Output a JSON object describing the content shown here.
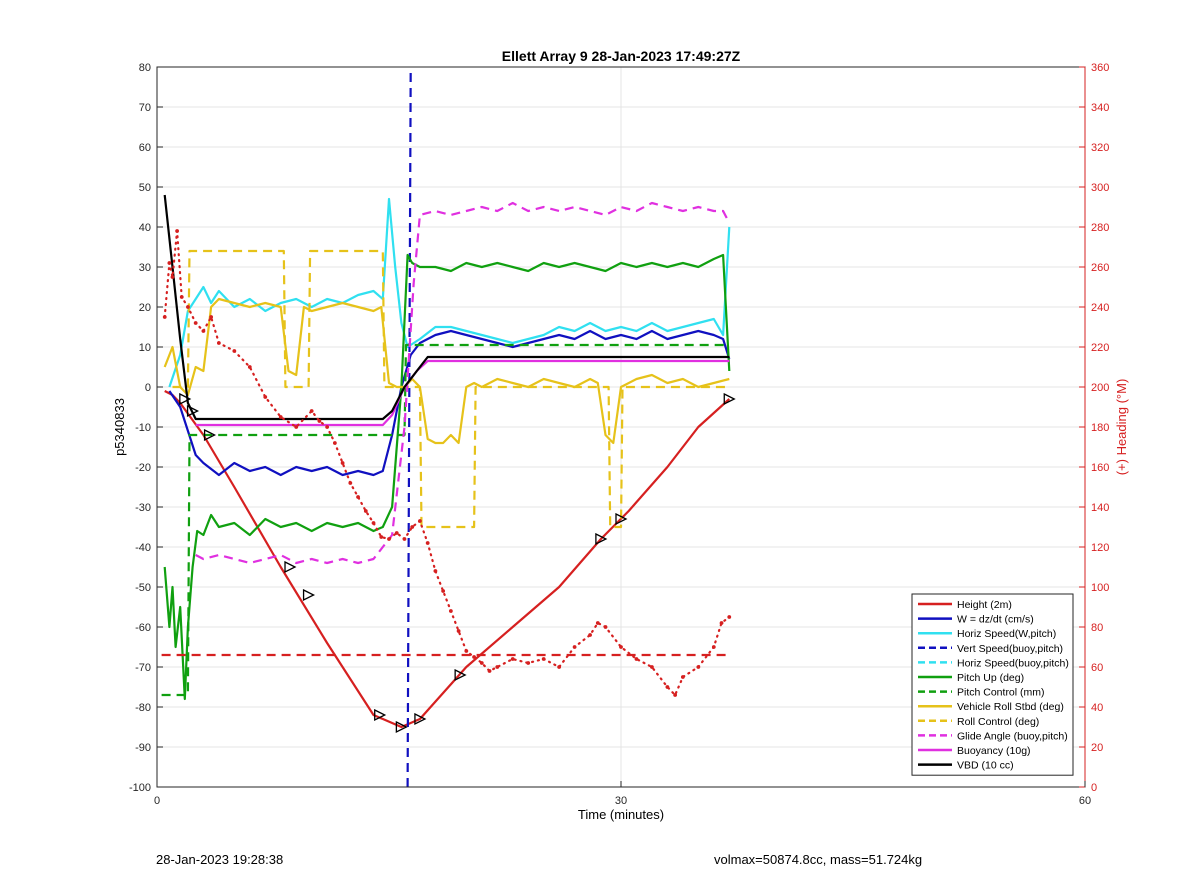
{
  "footer": {
    "timestamp": "28-Jan-2023 19:28:38",
    "summary": "volmax=50874.8cc, mass=51.724kg"
  },
  "chart_data": {
    "type": "line",
    "title": "Ellett Array 9 28-Jan-2023 17:49:27Z",
    "xlabel": "Time (minutes)",
    "ylabel": "p5340833",
    "y2label": "(+) Heading (°M)",
    "xlim": [
      0,
      60
    ],
    "ylim": [
      -100,
      80
    ],
    "y2lim": [
      0,
      360
    ],
    "xticks": [
      0,
      30,
      60
    ],
    "yticks": [
      -100,
      -90,
      -80,
      -70,
      -60,
      -50,
      -40,
      -30,
      -20,
      -10,
      0,
      10,
      20,
      30,
      40,
      50,
      60,
      70,
      80
    ],
    "y2ticks": [
      0,
      20,
      40,
      60,
      80,
      100,
      120,
      140,
      160,
      180,
      200,
      220,
      240,
      260,
      280,
      300,
      320,
      340,
      360
    ],
    "grid": true,
    "legend_position": "bottom-right",
    "colors": {
      "red": "#d62020",
      "blue": "#1010c0",
      "cyan": "#30e0f0",
      "green": "#10a010",
      "yellow": "#e6c21a",
      "magenta": "#e030e0",
      "black": "#000000",
      "right_axis": "#d62020"
    },
    "legend": [
      {
        "label": "Height (2m)",
        "color": "red",
        "style": "solid"
      },
      {
        "label": "W = dz/dt (cm/s)",
        "color": "blue",
        "style": "solid"
      },
      {
        "label": "Horiz Speed(W,pitch)",
        "color": "cyan",
        "style": "solid"
      },
      {
        "label": "Vert Speed(buoy,pitch)",
        "color": "blue",
        "style": "dashed"
      },
      {
        "label": "Horiz Speed(buoy,pitch)",
        "color": "cyan",
        "style": "dashed"
      },
      {
        "label": "Pitch Up (deg)",
        "color": "green",
        "style": "solid"
      },
      {
        "label": "Pitch Control (mm)",
        "color": "green",
        "style": "dashed"
      },
      {
        "label": "Vehicle Roll Stbd (deg)",
        "color": "yellow",
        "style": "solid"
      },
      {
        "label": "Roll Control (deg)",
        "color": "yellow",
        "style": "dashed"
      },
      {
        "label": "Glide Angle (buoy,pitch)",
        "color": "magenta",
        "style": "dashed"
      },
      {
        "label": "Buoyancy (10g)",
        "color": "magenta",
        "style": "solid"
      },
      {
        "label": "VBD (10 cc)",
        "color": "black",
        "style": "solid"
      }
    ],
    "series": [
      {
        "name": "Height (2m)",
        "color": "red",
        "style": "solid",
        "x": [
          0.5,
          1.0,
          1.5,
          3.0,
          5.0,
          8.0,
          11.0,
          14.0,
          15.8,
          17.0,
          20.0,
          23.0,
          26.0,
          28.7,
          30.5,
          33.0,
          35.0,
          37.0
        ],
        "y": [
          -1,
          -2,
          -4,
          -12,
          -25,
          -45,
          -64,
          -82,
          -85,
          -83,
          -70,
          -60,
          -50,
          -38,
          -31,
          -20,
          -10,
          -3
        ]
      },
      {
        "name": "W = dz/dt (cm/s)",
        "color": "blue",
        "style": "solid",
        "x": [
          0.8,
          1.5,
          2.5,
          3.0,
          4.0,
          5.0,
          6.0,
          7.0,
          8.0,
          9.0,
          10.0,
          11.0,
          12.0,
          13.0,
          14.0,
          14.6,
          15.2,
          15.8,
          16.4,
          17.0,
          18.0,
          19.0,
          20.0,
          21.0,
          22.0,
          23.0,
          24.0,
          25.0,
          26.0,
          27.0,
          28.0,
          29.0,
          30.0,
          31.0,
          32.0,
          33.0,
          34.0,
          35.0,
          36.0,
          36.6,
          37.0
        ],
        "y": [
          -1,
          -5,
          -17,
          -19,
          -22,
          -19,
          -21,
          -20,
          -22,
          -20,
          -21,
          -20,
          -22,
          -21,
          -22,
          -21,
          -12,
          0,
          8,
          11,
          13,
          14,
          13,
          12,
          11,
          10,
          11,
          12,
          13,
          12,
          14,
          12,
          13,
          12,
          14,
          12,
          13,
          14,
          13,
          12,
          7
        ]
      },
      {
        "name": "Horiz Speed(W,pitch)",
        "color": "cyan",
        "style": "solid",
        "x": [
          0.8,
          1.5,
          2.0,
          2.5,
          3.0,
          3.5,
          4.0,
          5.0,
          6.0,
          7.0,
          8.0,
          9.0,
          10.0,
          11.0,
          12.0,
          13.0,
          14.0,
          14.6,
          15.0,
          15.4,
          15.8,
          16.2,
          17.0,
          18.0,
          19.0,
          20.0,
          21.0,
          22.0,
          23.0,
          24.0,
          25.0,
          26.0,
          27.0,
          28.0,
          29.0,
          30.0,
          31.0,
          32.0,
          33.0,
          34.0,
          35.0,
          36.0,
          36.6,
          37.0
        ],
        "y": [
          0,
          8,
          19,
          22,
          25,
          21,
          24,
          20,
          22,
          19,
          21,
          22,
          20,
          22,
          21,
          23,
          24,
          22,
          47,
          30,
          16,
          10,
          12,
          15,
          15,
          14,
          13,
          12,
          11,
          12,
          13,
          15,
          14,
          16,
          14,
          15,
          14,
          16,
          14,
          15,
          16,
          17,
          13,
          40
        ]
      },
      {
        "name": "Vert Speed(buoy,pitch)",
        "color": "blue",
        "style": "dashed",
        "x": [
          16.2,
          16.4
        ],
        "y": [
          -100,
          80
        ]
      },
      {
        "name": "Pitch Up (deg)",
        "color": "green",
        "style": "solid",
        "x": [
          0.5,
          0.8,
          1.0,
          1.2,
          1.5,
          1.8,
          2.0,
          2.3,
          2.6,
          3.0,
          3.5,
          4.0,
          5.0,
          6.0,
          7.0,
          8.0,
          9.0,
          10.0,
          11.0,
          12.0,
          13.0,
          14.0,
          14.6,
          15.2,
          15.8,
          16.2,
          16.5,
          17.0,
          18.0,
          19.0,
          20.0,
          21.0,
          22.0,
          23.0,
          24.0,
          25.0,
          26.0,
          27.0,
          28.0,
          29.0,
          30.0,
          31.0,
          32.0,
          33.0,
          34.0,
          35.0,
          36.0,
          36.6,
          37.0
        ],
        "y": [
          -45,
          -60,
          -50,
          -65,
          -55,
          -78,
          -60,
          -45,
          -36,
          -37,
          -32,
          -35,
          -34,
          -37,
          -33,
          -35,
          -34,
          -36,
          -34,
          -35,
          -34,
          -36,
          -35,
          -30,
          0,
          33,
          31,
          30,
          30,
          29,
          31,
          30,
          31,
          30,
          29,
          31,
          30,
          31,
          30,
          29,
          31,
          30,
          31,
          30,
          31,
          30,
          32,
          33,
          4
        ]
      },
      {
        "name": "Pitch Control (mm)",
        "color": "green",
        "style": "dashed",
        "x": [
          0.3,
          2.0,
          2.1,
          3.5,
          14.6,
          14.7,
          16.0,
          16.1,
          37.0
        ],
        "y": [
          -77,
          -77,
          -12,
          -12,
          -12,
          -12,
          -12,
          10.5,
          10.5
        ]
      },
      {
        "name": "Vehicle Roll Stbd (deg)",
        "color": "yellow",
        "style": "solid",
        "x": [
          0.5,
          1.0,
          1.5,
          2.0,
          2.5,
          3.0,
          3.5,
          4.0,
          5.0,
          6.0,
          7.0,
          8.0,
          8.5,
          9.0,
          9.5,
          10.0,
          11.0,
          12.0,
          13.0,
          14.0,
          14.5,
          15.0,
          15.5,
          16.0,
          16.5,
          17.0,
          17.5,
          18.0,
          18.5,
          19.0,
          19.5,
          20.0,
          20.5,
          21.0,
          22.0,
          23.0,
          24.0,
          25.0,
          26.0,
          27.0,
          28.0,
          28.5,
          29.0,
          29.5,
          30.0,
          31.0,
          32.0,
          33.0,
          34.0,
          35.0,
          36.0,
          37.0
        ],
        "y": [
          5,
          10,
          0,
          -2,
          5,
          4,
          20,
          22,
          21,
          20,
          21,
          20,
          4,
          3,
          20,
          19,
          20,
          21,
          20,
          19,
          20,
          1,
          0,
          0,
          2,
          0,
          -13,
          -14,
          -14,
          -12,
          -14,
          0,
          1,
          0,
          2,
          1,
          0,
          2,
          1,
          0,
          2,
          1,
          -12,
          -14,
          0,
          2,
          3,
          1,
          2,
          0,
          1,
          2
        ]
      },
      {
        "name": "Roll Control (deg)",
        "color": "yellow",
        "style": "dashed",
        "x": [
          1.0,
          2.0,
          2.1,
          3.0,
          3.1,
          8.2,
          8.3,
          9.8,
          9.9,
          14.6,
          14.7,
          17.0,
          17.1,
          19.0,
          19.1,
          20.5,
          20.6,
          29.2,
          29.3,
          30.0,
          30.1,
          37.0
        ],
        "y": [
          0,
          0,
          34,
          34,
          34,
          34,
          0,
          0,
          34,
          34,
          0,
          0,
          -35,
          -35,
          -35,
          -35,
          0,
          0,
          -35,
          -35,
          0,
          0
        ]
      },
      {
        "name": "Glide Angle (buoy,pitch)",
        "color": "magenta",
        "style": "dashed",
        "x": [
          2.5,
          3.0,
          4.0,
          5.0,
          6.0,
          7.0,
          8.0,
          9.0,
          10.0,
          11.0,
          12.0,
          13.0,
          14.0,
          14.6,
          15.2,
          16.0,
          16.6,
          17.0,
          18.0,
          19.0,
          20.0,
          21.0,
          22.0,
          23.0,
          24.0,
          25.0,
          26.0,
          27.0,
          28.0,
          29.0,
          30.0,
          31.0,
          32.0,
          33.0,
          34.0,
          35.0,
          36.0,
          36.6,
          37.0
        ],
        "y": [
          -42,
          -43,
          -42,
          -43,
          -44,
          -43,
          -42,
          -44,
          -43,
          -44,
          -43,
          -44,
          -43,
          -40,
          -37,
          -10,
          26,
          43,
          44,
          43,
          44,
          45,
          44,
          46,
          44,
          45,
          44,
          45,
          44,
          43,
          45,
          44,
          46,
          45,
          44,
          45,
          44,
          44,
          41
        ]
      },
      {
        "name": "Buoyancy (10g)",
        "color": "magenta",
        "style": "solid",
        "x": [
          2.5,
          3.0,
          14.6,
          15.2,
          16.0,
          16.8,
          17.5,
          37.0
        ],
        "y": [
          -9.5,
          -9.5,
          -9.5,
          -7,
          0,
          4,
          6.5,
          6.5
        ]
      },
      {
        "name": "VBD (10 cc)",
        "color": "black",
        "style": "solid",
        "x": [
          0.5,
          1.0,
          1.5,
          2.0,
          2.5,
          3.0,
          14.6,
          15.2,
          16.0,
          16.8,
          17.5,
          37.0
        ],
        "y": [
          48,
          30,
          12,
          -4,
          -8,
          -8,
          -8,
          -6,
          0,
          4,
          7.5,
          7.5
        ]
      },
      {
        "name": "Heading target",
        "color": "red",
        "style": "dashed",
        "axis": "right",
        "x": [
          0.3,
          37.0
        ],
        "y": [
          66,
          66
        ]
      },
      {
        "name": "Heading",
        "color": "red",
        "style": "dotted",
        "axis": "right",
        "x": [
          0.5,
          0.8,
          1.0,
          1.3,
          1.6,
          2.0,
          2.5,
          3.0,
          3.5,
          4.0,
          5.0,
          6.0,
          7.0,
          8.0,
          9.0,
          10.0,
          10.5,
          11.0,
          11.5,
          12.0,
          12.5,
          13.0,
          13.5,
          14.0,
          14.5,
          15.0,
          15.5,
          16.0,
          16.5,
          17.0,
          17.5,
          18.0,
          18.5,
          19.0,
          19.5,
          20.0,
          20.5,
          21.0,
          21.5,
          22.0,
          23.0,
          24.0,
          25.0,
          26.0,
          27.0,
          28.0,
          28.5,
          29.0,
          30.0,
          31.0,
          32.0,
          33.0,
          33.5,
          34.0,
          35.0,
          36.0,
          36.5,
          37.0
        ],
        "y": [
          235,
          262,
          255,
          278,
          245,
          240,
          232,
          228,
          235,
          222,
          218,
          210,
          195,
          185,
          180,
          188,
          183,
          180,
          172,
          162,
          152,
          145,
          138,
          132,
          125,
          124,
          127,
          124,
          130,
          133,
          122,
          108,
          98,
          88,
          78,
          68,
          65,
          62,
          58,
          60,
          64,
          62,
          64,
          60,
          70,
          76,
          82,
          80,
          70,
          64,
          60,
          50,
          46,
          55,
          60,
          70,
          82,
          85
        ]
      },
      {
        "name": "Markers",
        "color": "black",
        "style": "markers",
        "x": [
          1.8,
          2.3,
          3.4,
          8.6,
          9.8,
          14.4,
          15.8,
          17.0,
          19.6,
          28.7,
          30.0,
          37.0
        ],
        "y": [
          -3,
          -6,
          -12,
          -45,
          -52,
          -82,
          -85,
          -83,
          -72,
          -38,
          -33,
          -3
        ]
      }
    ]
  }
}
